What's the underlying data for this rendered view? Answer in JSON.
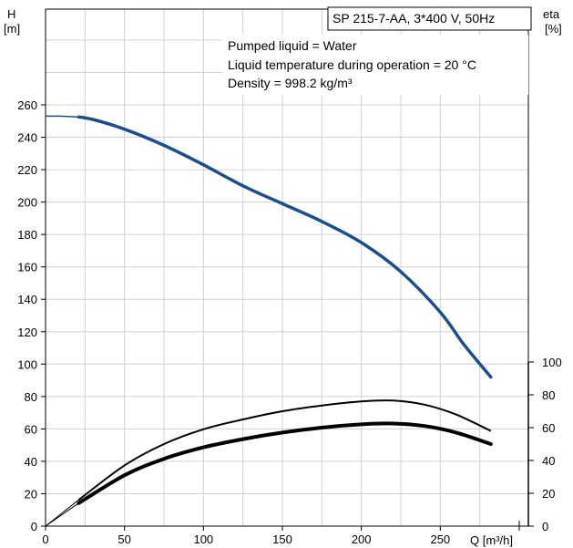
{
  "chart_data": {
    "type": "line",
    "title": "SP 215-7-AA, 3*400 V, 50Hz",
    "info": [
      "Pumped liquid = Water",
      "Liquid temperature during operation = 20 °C",
      "Density = 998.2 kg/m³"
    ],
    "xlabel": "Q [m³/h]",
    "ylabel_left_line1": "H",
    "ylabel_left_line2": "[m]",
    "ylabel_right_line1": "eta",
    "ylabel_right_line2": "[%]",
    "xlim": [
      0,
      300
    ],
    "ylim_left": [
      0,
      260
    ],
    "ylim_right": [
      0,
      100
    ],
    "x_ticks": [
      0,
      50,
      100,
      150,
      200,
      250
    ],
    "y_left_ticks": [
      0,
      20,
      40,
      60,
      80,
      100,
      120,
      140,
      160,
      180,
      200,
      220,
      240,
      260
    ],
    "y_right_ticks": [
      0,
      20,
      40,
      60,
      80,
      100
    ],
    "grid": true,
    "colors": {
      "head": "#1b4f8c",
      "efficiency": "#000000"
    },
    "series": [
      {
        "axis": "left",
        "dashed_segment_end_x": 21,
        "points": [
          [
            0,
            253
          ],
          [
            10,
            253
          ],
          [
            21,
            252.5
          ],
          [
            30,
            251
          ],
          [
            50,
            245
          ],
          [
            75,
            235
          ],
          [
            100,
            223
          ],
          [
            125,
            210
          ],
          [
            150,
            199
          ],
          [
            175,
            188
          ],
          [
            200,
            175
          ],
          [
            225,
            157
          ],
          [
            250,
            132
          ],
          [
            265,
            112
          ],
          [
            282,
            92
          ]
        ]
      },
      {
        "axis": "right",
        "points": [
          [
            0,
            0
          ],
          [
            21,
            16
          ],
          [
            50,
            37
          ],
          [
            75,
            50
          ],
          [
            100,
            59
          ],
          [
            125,
            65
          ],
          [
            150,
            70
          ],
          [
            175,
            73.5
          ],
          [
            200,
            76
          ],
          [
            220,
            76.5
          ],
          [
            240,
            74
          ],
          [
            260,
            68
          ],
          [
            282,
            58
          ]
        ]
      },
      {
        "axis": "right",
        "points": [
          [
            0,
            0
          ],
          [
            21,
            14
          ],
          [
            50,
            31
          ],
          [
            75,
            41
          ],
          [
            100,
            48
          ],
          [
            125,
            53
          ],
          [
            150,
            57
          ],
          [
            175,
            60
          ],
          [
            200,
            62
          ],
          [
            220,
            62.5
          ],
          [
            240,
            61
          ],
          [
            260,
            57
          ],
          [
            282,
            50
          ]
        ]
      }
    ]
  }
}
